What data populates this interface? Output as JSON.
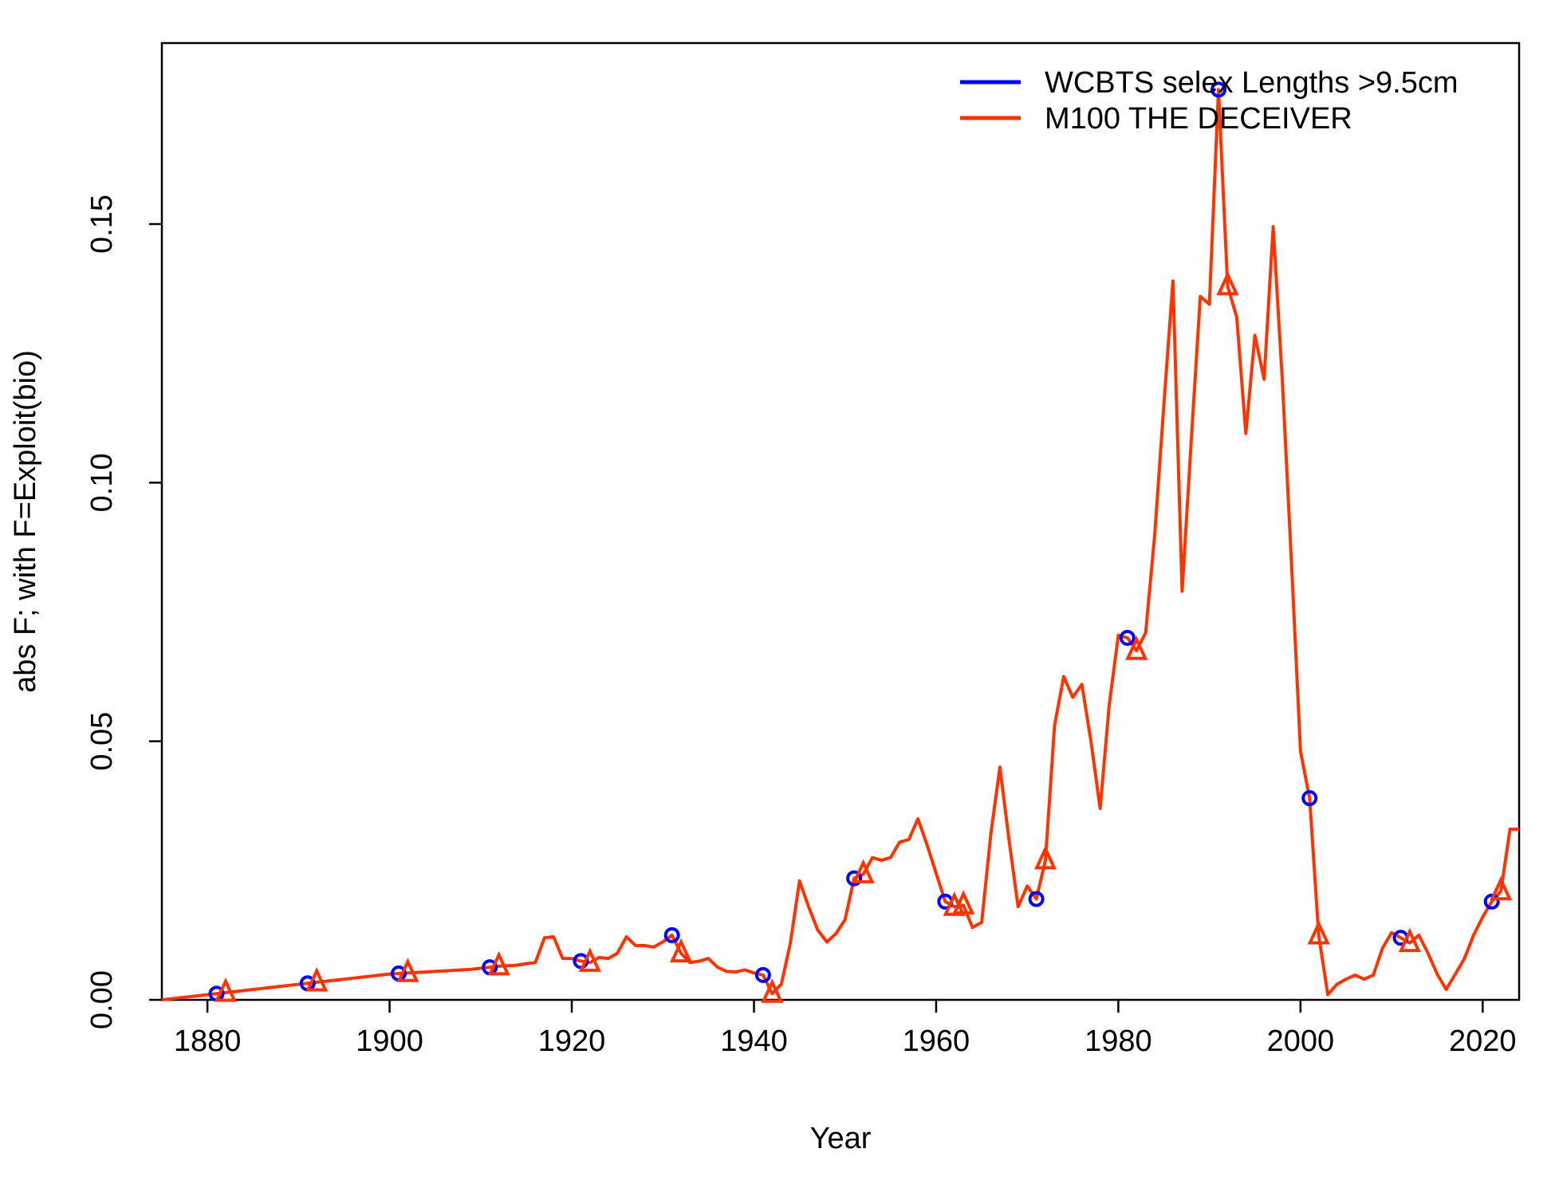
{
  "chart_data": {
    "type": "line",
    "title": "",
    "xlabel": "Year",
    "ylabel": "abs F; with F=Exploit(bio)",
    "xlim": [
      1875,
      2024
    ],
    "ylim": [
      0,
      0.185
    ],
    "x_ticks": [
      1880,
      1900,
      1920,
      1940,
      1960,
      1980,
      2000,
      2020
    ],
    "y_ticks": [
      0.0,
      0.05,
      0.1,
      0.15
    ],
    "y_tick_labels": [
      "0.00",
      "0.05",
      "0.10",
      "0.15"
    ],
    "grid": false,
    "legend_position": "top-right",
    "colors": {
      "series1": "#0000ff",
      "series2": "#ff3300"
    },
    "series": [
      {
        "name": "WCBTS selex Lengths >9.5cm",
        "marker": "circle",
        "marker_x": [
          1881,
          1891,
          1901,
          1911,
          1921,
          1931,
          1941,
          1951,
          1961,
          1971,
          1981,
          1991,
          2001,
          2011,
          2021
        ]
      },
      {
        "name": "M100 THE DECEIVER",
        "marker": "triangle",
        "marker_x": [
          1882,
          1892,
          1902,
          1912,
          1922,
          1932,
          1942,
          1952,
          1962,
          1963,
          1972,
          1982,
          1992,
          2002,
          2012,
          2022
        ]
      }
    ],
    "x": [
      1875,
      1876,
      1877,
      1878,
      1879,
      1880,
      1881,
      1882,
      1883,
      1884,
      1885,
      1886,
      1887,
      1888,
      1889,
      1890,
      1891,
      1892,
      1893,
      1894,
      1895,
      1896,
      1897,
      1898,
      1899,
      1900,
      1901,
      1902,
      1903,
      1904,
      1905,
      1906,
      1907,
      1908,
      1909,
      1910,
      1911,
      1912,
      1913,
      1914,
      1915,
      1916,
      1917,
      1918,
      1919,
      1920,
      1921,
      1922,
      1923,
      1924,
      1925,
      1926,
      1927,
      1928,
      1929,
      1930,
      1931,
      1932,
      1933,
      1934,
      1935,
      1936,
      1937,
      1938,
      1939,
      1940,
      1941,
      1942,
      1943,
      1944,
      1945,
      1946,
      1947,
      1948,
      1949,
      1950,
      1951,
      1952,
      1953,
      1954,
      1955,
      1956,
      1957,
      1958,
      1959,
      1960,
      1961,
      1962,
      1963,
      1964,
      1965,
      1966,
      1967,
      1968,
      1969,
      1970,
      1971,
      1972,
      1973,
      1974,
      1975,
      1976,
      1977,
      1978,
      1979,
      1980,
      1981,
      1982,
      1983,
      1984,
      1985,
      1986,
      1987,
      1988,
      1989,
      1990,
      1991,
      1992,
      1993,
      1994,
      1995,
      1996,
      1997,
      1998,
      1999,
      2000,
      2001,
      2002,
      2003,
      2004,
      2005,
      2006,
      2007,
      2008,
      2009,
      2010,
      2011,
      2012,
      2013,
      2014,
      2015,
      2016,
      2017,
      2018,
      2019,
      2020,
      2021,
      2022,
      2023,
      2024
    ],
    "y": [
      0.0,
      0.0002,
      0.0004,
      0.0006,
      0.0008,
      0.001,
      0.0012,
      0.0014,
      0.0016,
      0.0018,
      0.002,
      0.0022,
      0.0024,
      0.0026,
      0.0028,
      0.003,
      0.0032,
      0.0034,
      0.0036,
      0.0038,
      0.004,
      0.0042,
      0.0044,
      0.0046,
      0.0048,
      0.005,
      0.0051,
      0.0052,
      0.0053,
      0.0054,
      0.0055,
      0.0056,
      0.0057,
      0.0058,
      0.0059,
      0.0061,
      0.0063,
      0.0065,
      0.0066,
      0.0067,
      0.007,
      0.0072,
      0.012,
      0.0122,
      0.008,
      0.008,
      0.0075,
      0.0072,
      0.0082,
      0.008,
      0.009,
      0.0122,
      0.0105,
      0.0105,
      0.0102,
      0.0112,
      0.0125,
      0.009,
      0.0072,
      0.0075,
      0.008,
      0.0063,
      0.0055,
      0.0054,
      0.0058,
      0.0052,
      0.0048,
      0.0012,
      0.003,
      0.011,
      0.023,
      0.018,
      0.0135,
      0.0112,
      0.0128,
      0.0155,
      0.0235,
      0.0243,
      0.0275,
      0.027,
      0.0275,
      0.0305,
      0.031,
      0.035,
      0.03,
      0.0245,
      0.019,
      0.018,
      0.0183,
      0.014,
      0.015,
      0.032,
      0.045,
      0.031,
      0.018,
      0.022,
      0.0195,
      0.027,
      0.053,
      0.0625,
      0.0585,
      0.061,
      0.05,
      0.037,
      0.057,
      0.0705,
      0.07,
      0.0675,
      0.071,
      0.09,
      0.115,
      0.139,
      0.079,
      0.108,
      0.136,
      0.1345,
      0.176,
      0.138,
      0.132,
      0.1095,
      0.1285,
      0.12,
      0.1495,
      0.12,
      0.085,
      0.048,
      0.039,
      0.0125,
      0.001,
      0.003,
      0.004,
      0.0048,
      0.004,
      0.0048,
      0.01,
      0.013,
      0.012,
      0.011,
      0.0125,
      0.009,
      0.005,
      0.002,
      0.005,
      0.008,
      0.0125,
      0.016,
      0.019,
      0.021,
      0.033,
      0.033
    ]
  }
}
